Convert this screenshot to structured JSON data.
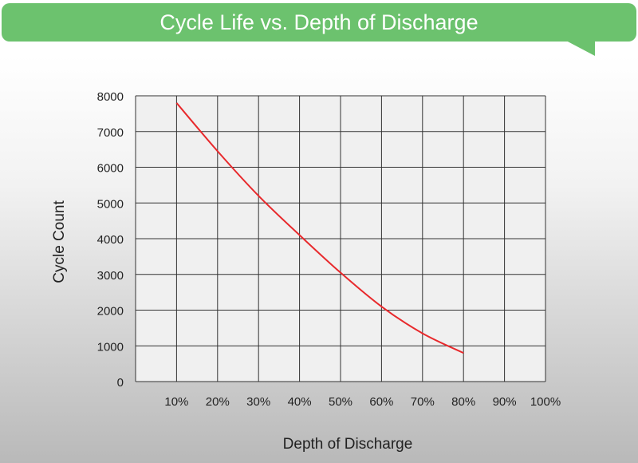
{
  "chart_data": {
    "type": "line",
    "title": "Cycle Life vs. Depth of Discharge",
    "xlabel": "Depth of Discharge",
    "ylabel": "Cycle Count",
    "x_ticks": [
      "10%",
      "20%",
      "30%",
      "40%",
      "50%",
      "60%",
      "70%",
      "80%",
      "90%",
      "100%"
    ],
    "y_ticks": [
      "0",
      "1000",
      "2000",
      "3000",
      "4000",
      "5000",
      "6000",
      "7000",
      "8000"
    ],
    "ylim": [
      0,
      8000
    ],
    "grid": true,
    "series": [
      {
        "color": "#e8292c",
        "x": [
          10,
          20,
          30,
          40,
          50,
          60,
          70,
          80
        ],
        "y": [
          7800,
          6450,
          5200,
          4100,
          3050,
          2100,
          1350,
          800
        ]
      }
    ],
    "colors": {
      "banner": "#6cc26e",
      "plot_bg": "#f0f0f0",
      "grid": "#333333"
    }
  }
}
